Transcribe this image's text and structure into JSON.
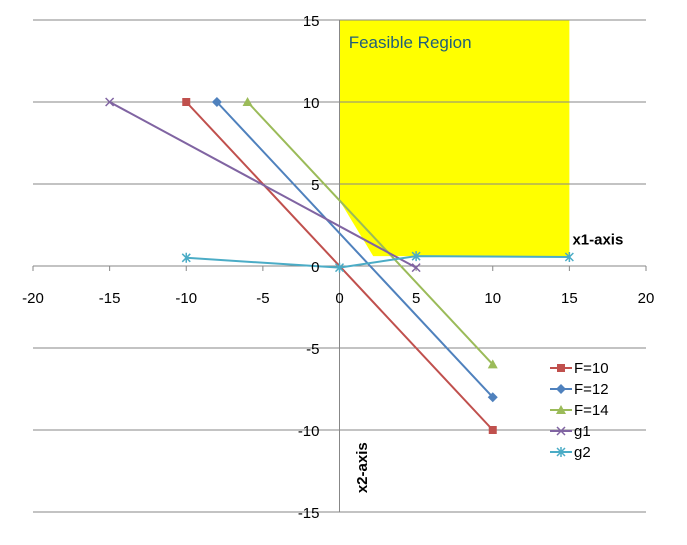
{
  "chart_data": {
    "type": "line",
    "xlim": [
      -20,
      20
    ],
    "ylim": [
      -15,
      15
    ],
    "x_ticks": [
      -20,
      -15,
      -10,
      -5,
      0,
      5,
      10,
      15,
      20
    ],
    "y_ticks": [
      -15,
      -10,
      -5,
      0,
      5,
      10,
      15
    ],
    "x_tick_labels": [
      "-20",
      "-15",
      "-10",
      "-5",
      "0",
      "5",
      "10",
      "15",
      "20"
    ],
    "y_tick_labels": [
      "-15",
      "-10",
      "-5",
      "0",
      "5",
      "10",
      "15"
    ],
    "grid": "horizontal",
    "x_axis_title": "x1-axis",
    "y_axis_title": "x2-axis",
    "annotation": "Feasible Region",
    "feasible_region": {
      "color": "#ffff00",
      "polygon": [
        [
          0,
          15
        ],
        [
          15,
          15
        ],
        [
          15,
          0.6
        ],
        [
          2.2,
          0.6
        ],
        [
          0,
          4
        ]
      ]
    },
    "legend_position": "bottom-right",
    "series": [
      {
        "name": "F=10",
        "color": "#c0504d",
        "marker": "square",
        "points": [
          [
            -10,
            10
          ],
          [
            10,
            -10
          ]
        ]
      },
      {
        "name": "F=12",
        "color": "#4f81bd",
        "marker": "diamond",
        "points": [
          [
            -8,
            10
          ],
          [
            10,
            -8
          ]
        ]
      },
      {
        "name": "F=14",
        "color": "#9bbb59",
        "marker": "triangle",
        "points": [
          [
            -6,
            10
          ],
          [
            10,
            -6
          ]
        ]
      },
      {
        "name": "g1",
        "color": "#8064a2",
        "marker": "x",
        "points": [
          [
            -15,
            10
          ],
          [
            5,
            -0.1
          ]
        ]
      },
      {
        "name": "g2",
        "color": "#4bacc6",
        "marker": "star",
        "points": [
          [
            -10,
            0.5
          ],
          [
            0,
            -0.1
          ],
          [
            5,
            0.6
          ],
          [
            15,
            0.55
          ]
        ]
      }
    ]
  }
}
